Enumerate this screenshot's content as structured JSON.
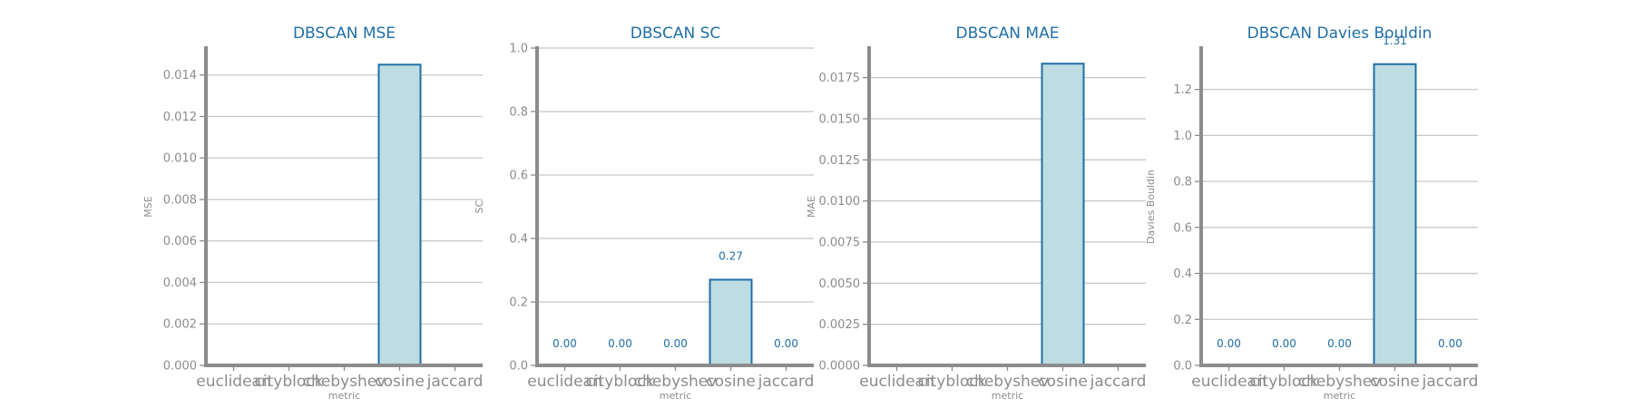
{
  "figure": {
    "background": "#ffffff",
    "accent_color": "#1f6fa5",
    "bar_fill": "#bedde3",
    "axis_color": "#8c8c8c",
    "grid_color": "#c8c8c8"
  },
  "chart_data": [
    {
      "type": "bar",
      "title": "DBSCAN MSE",
      "xlabel": "metric",
      "ylabel": "MSE",
      "categories": [
        "euclidean",
        "cityblock",
        "chebyshev",
        "cosine",
        "jaccard"
      ],
      "values": [
        0,
        0,
        0,
        0.0145,
        0
      ],
      "data_labels": [
        "",
        "",
        "",
        "",
        ""
      ],
      "ylim": [
        0,
        0.0153
      ],
      "yticks": [
        0,
        0.002,
        0.004,
        0.006,
        0.008,
        0.01,
        0.012,
        0.014
      ],
      "ytick_labels": [
        "0.000",
        "0.002",
        "0.004",
        "0.006",
        "0.008",
        "0.010",
        "0.012",
        "0.014"
      ],
      "grid": true
    },
    {
      "type": "bar",
      "title": "DBSCAN SC",
      "xlabel": "metric",
      "ylabel": "SC",
      "categories": [
        "euclidean",
        "cityblock",
        "chebyshev",
        "cosine",
        "jaccard"
      ],
      "values": [
        0,
        0,
        0,
        0.27,
        0
      ],
      "data_labels": [
        "0.00",
        "0.00",
        "0.00",
        "0.27",
        "0.00"
      ],
      "ylim": [
        0,
        1.0
      ],
      "yticks": [
        0,
        0.2,
        0.4,
        0.6,
        0.8,
        1.0
      ],
      "ytick_labels": [
        "0.0",
        "0.2",
        "0.4",
        "0.6",
        "0.8",
        "1.0"
      ],
      "grid": true
    },
    {
      "type": "bar",
      "title": "DBSCAN MAE",
      "xlabel": "metric",
      "ylabel": "MAE",
      "categories": [
        "euclidean",
        "cityblock",
        "chebyshev",
        "cosine",
        "jaccard"
      ],
      "values": [
        0,
        0,
        0,
        0.01835,
        0
      ],
      "data_labels": [
        "",
        "",
        "",
        "",
        ""
      ],
      "ylim": [
        0,
        0.0193
      ],
      "yticks": [
        0,
        0.0025,
        0.005,
        0.0075,
        0.01,
        0.0125,
        0.015,
        0.0175
      ],
      "ytick_labels": [
        "0.0000",
        "0.0025",
        "0.0050",
        "0.0075",
        "0.0100",
        "0.0125",
        "0.0150",
        "0.0175"
      ],
      "grid": true
    },
    {
      "type": "bar",
      "title": "DBSCAN Davies Bouldin",
      "xlabel": "metric",
      "ylabel": "Davies Bouldin",
      "categories": [
        "euclidean",
        "cityblock",
        "chebyshev",
        "cosine",
        "jaccard"
      ],
      "values": [
        0,
        0,
        0,
        1.31,
        0
      ],
      "data_labels": [
        "0.00",
        "0.00",
        "0.00",
        "1.31",
        "0.00"
      ],
      "ylim": [
        0,
        1.38
      ],
      "yticks": [
        0,
        0.2,
        0.4,
        0.6,
        0.8,
        1.0,
        1.2
      ],
      "ytick_labels": [
        "0.0",
        "0.2",
        "0.4",
        "0.6",
        "0.8",
        "1.0",
        "1.2"
      ],
      "grid": true
    }
  ]
}
